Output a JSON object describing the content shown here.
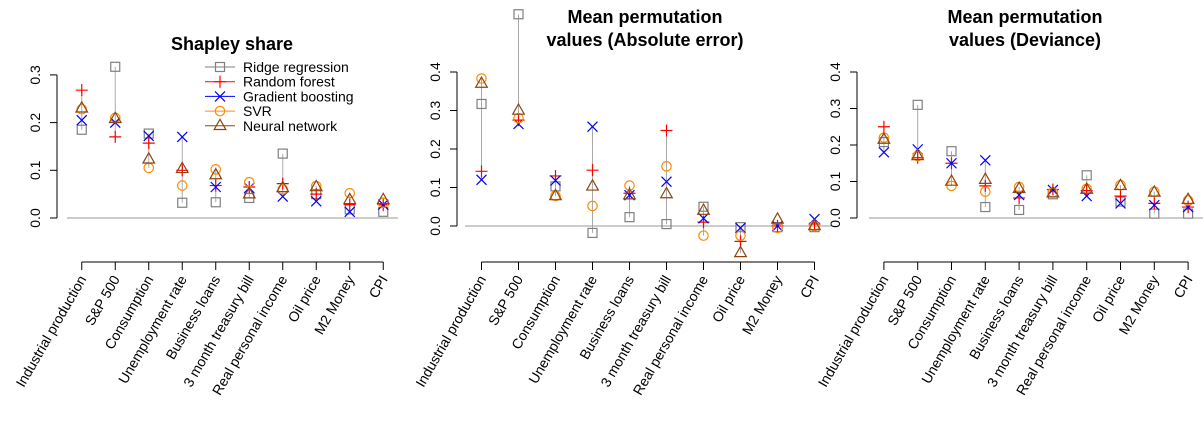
{
  "chart_data": [
    {
      "type": "scatter",
      "title": "Shapley share",
      "categories": [
        "Industrial production",
        "S&P 500",
        "Consumption",
        "Unemployment rate",
        "Business loans",
        "3 month treasury bill",
        "Real personal income",
        "Oil price",
        "M2 Money",
        "CPI"
      ],
      "ylim": [
        -0.01,
        0.33
      ],
      "yticks": [
        {
          "value": 0,
          "label": "0.0"
        },
        0.1,
        0.2,
        0.3
      ],
      "legend": "topright",
      "range_lines": true,
      "series": [
        {
          "name": "Ridge regression",
          "color": "#808080",
          "marker": "square",
          "values": [
            0.185,
            0.317,
            0.177,
            0.032,
            0.033,
            0.042,
            0.135,
            0.05,
            0.018,
            0.013
          ]
        },
        {
          "name": "Random forest",
          "color": "#ff0000",
          "marker": "plus",
          "values": [
            0.268,
            0.17,
            0.157,
            0.1,
            0.068,
            0.065,
            0.072,
            0.05,
            0.028,
            0.028
          ]
        },
        {
          "name": "Gradient boosting",
          "color": "#0000ff",
          "marker": "cross",
          "values": [
            0.205,
            0.2,
            0.172,
            0.17,
            0.065,
            0.063,
            0.045,
            0.035,
            0.013,
            0.028
          ]
        },
        {
          "name": "SVR",
          "color": "#ff8c00",
          "marker": "circle",
          "values": [
            0.228,
            0.21,
            0.105,
            0.068,
            0.102,
            0.075,
            0.06,
            0.067,
            0.052,
            0.032
          ]
        },
        {
          "name": "Neural network",
          "color": "#8b4513",
          "marker": "triangle",
          "values": [
            0.23,
            0.208,
            0.123,
            0.103,
            0.09,
            0.05,
            0.063,
            0.065,
            0.038,
            0.038
          ]
        }
      ]
    },
    {
      "type": "scatter",
      "title": "Mean permutation\nvalues (Absolute error)",
      "categories": [
        "Industrial production",
        "S&P 500",
        "Consumption",
        "Unemployment rate",
        "Business loans",
        "3 month treasury bill",
        "Real personal income",
        "Oil price",
        "M2 Money",
        "CPI"
      ],
      "ylim": [
        -0.08,
        0.56
      ],
      "yticks": [
        {
          "value": 0,
          "label": "0.0"
        },
        0.1,
        0.2,
        0.3,
        0.4
      ],
      "range_lines": true,
      "series": [
        {
          "color": "#808080",
          "marker": "square",
          "values": [
            0.317,
            0.55,
            0.103,
            -0.018,
            0.023,
            0.005,
            0.05,
            -0.003,
            -0.003,
            -0.003
          ]
        },
        {
          "color": "#ff0000",
          "marker": "plus",
          "values": [
            0.142,
            0.275,
            0.13,
            0.145,
            0.085,
            0.248,
            0.01,
            -0.04,
            0.0,
            0.005
          ]
        },
        {
          "color": "#0000ff",
          "marker": "cross",
          "values": [
            0.12,
            0.265,
            0.118,
            0.258,
            0.08,
            0.115,
            0.02,
            -0.005,
            0.0,
            0.018
          ]
        },
        {
          "color": "#ff8c00",
          "marker": "circle",
          "values": [
            0.383,
            0.28,
            0.078,
            0.052,
            0.105,
            0.155,
            -0.025,
            -0.025,
            -0.005,
            0.0
          ]
        },
        {
          "color": "#8b4513",
          "marker": "triangle",
          "values": [
            0.37,
            0.3,
            0.078,
            0.103,
            0.08,
            0.083,
            0.04,
            -0.07,
            0.017,
            0.0
          ]
        }
      ]
    },
    {
      "type": "scatter",
      "title": "Mean permutation\nvalues (Deviance)",
      "categories": [
        "Industrial production",
        "S&P 500",
        "Consumption",
        "Unemployment rate",
        "Business loans",
        "3 month treasury bill",
        "Real personal income",
        "Oil price",
        "M2 Money",
        "CPI"
      ],
      "ylim": [
        -0.01,
        0.42
      ],
      "yticks": [
        {
          "value": 0,
          "label": "0.0"
        },
        0.1,
        0.2,
        0.3,
        0.4
      ],
      "range_lines": true,
      "series": [
        {
          "color": "#808080",
          "marker": "square",
          "values": [
            0.208,
            0.31,
            0.183,
            0.03,
            0.022,
            0.065,
            0.117,
            0.045,
            0.012,
            0.012
          ]
        },
        {
          "color": "#ff0000",
          "marker": "plus",
          "values": [
            0.25,
            0.165,
            0.15,
            0.088,
            0.055,
            0.078,
            0.075,
            0.06,
            0.04,
            0.03
          ]
        },
        {
          "color": "#0000ff",
          "marker": "cross",
          "values": [
            0.18,
            0.188,
            0.15,
            0.158,
            0.063,
            0.077,
            0.06,
            0.04,
            0.035,
            0.03
          ]
        },
        {
          "color": "#ff8c00",
          "marker": "circle",
          "values": [
            0.22,
            0.17,
            0.088,
            0.072,
            0.085,
            0.07,
            0.08,
            0.09,
            0.072,
            0.048
          ]
        },
        {
          "color": "#8b4513",
          "marker": "triangle",
          "values": [
            0.215,
            0.17,
            0.1,
            0.105,
            0.08,
            0.068,
            0.078,
            0.088,
            0.07,
            0.05
          ]
        }
      ]
    }
  ]
}
